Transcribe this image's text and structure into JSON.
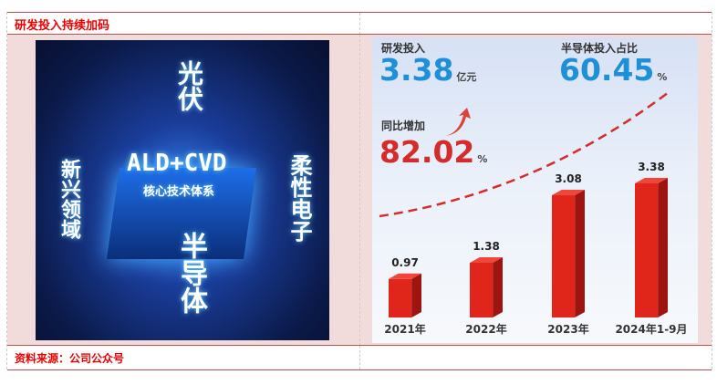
{
  "title": "研发投入持续加码",
  "source": "资料来源：公司公众号",
  "image": {
    "labels": [
      "光伏",
      "新兴领域",
      "ALD+CVD",
      "核心技术体系",
      "半导体",
      "柔性电子"
    ]
  },
  "info": {
    "rd_label": "研发投入",
    "rd_value": "3.38",
    "rd_unit": "亿元",
    "semi_label": "半导体投入占比",
    "semi_value": "60.45",
    "semi_unit": "%",
    "yoy_label": "同比增加",
    "yoy_value": "82.02",
    "yoy_unit": "%"
  },
  "colors": {
    "blue": "#1e90d8",
    "red": "#d42b2b",
    "bar": "#e0261a"
  },
  "chart_data": {
    "type": "bar",
    "categories": [
      "2021年",
      "2022年",
      "2023年",
      "2024年1-9月"
    ],
    "values": [
      0.97,
      1.38,
      3.08,
      3.38
    ],
    "data_labels": [
      "0.97",
      "1.38",
      "3.08",
      "3.38"
    ],
    "unit": "亿元"
  }
}
